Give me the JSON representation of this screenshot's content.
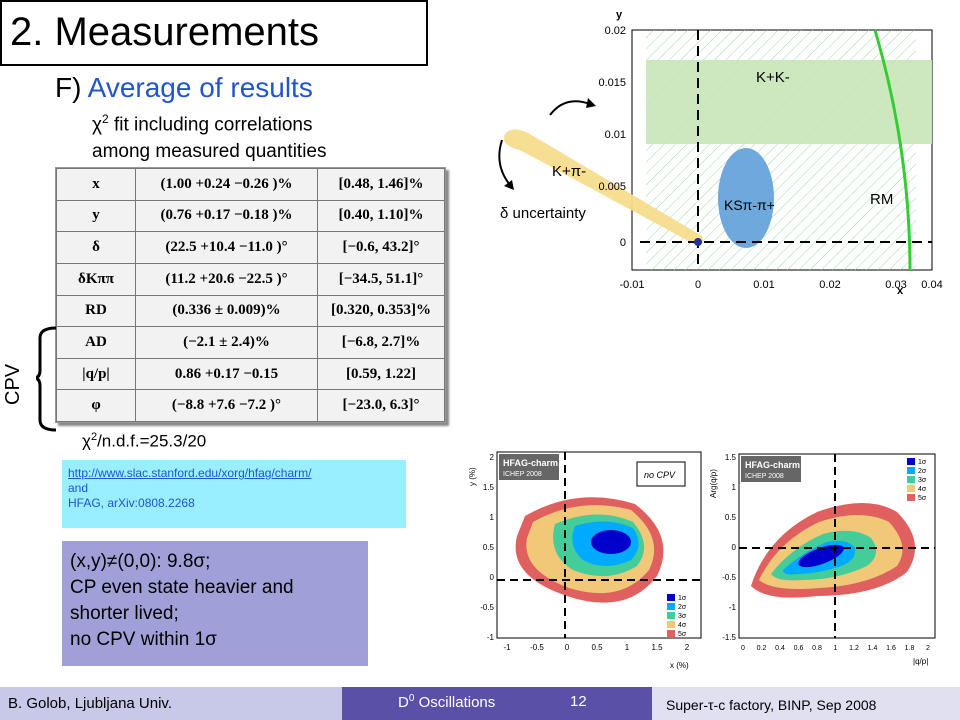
{
  "title": "2. Measurements",
  "section": {
    "letter": "F)",
    "name": "Average of results"
  },
  "fit_description": {
    "line1": "χ2 fit including correlations",
    "line1_symbol": "χ",
    "line1_sup": "2",
    "line1_rest": " fit including correlations",
    "line2": "among measured quantities"
  },
  "results_table": {
    "rows": [
      {
        "param": "x",
        "value": "(1.00 +0.24 −0.26 )%",
        "interval": "[0.48,   1.46]%"
      },
      {
        "param": "y",
        "value": "(0.76 +0.17 −0.18 )%",
        "interval": "[0.40,   1.10]%"
      },
      {
        "param": "δ",
        "value": "(22.5 +10.4 −11.0 )°",
        "interval": "[−0.6,   43.2]°"
      },
      {
        "param": "δKππ",
        "value": "(11.2 +20.6 −22.5 )°",
        "interval": "[−34.5,   51.1]°"
      },
      {
        "param": "RD",
        "value": "(0.336 ± 0.009)%",
        "interval": "[0.320,   0.353]%"
      },
      {
        "param": "AD",
        "value": "(−2.1 ± 2.4)%",
        "interval": "[−6.8,   2.7]%"
      },
      {
        "param": "|q/p|",
        "value": "0.86 +0.17 −0.15",
        "interval": "[0.59,   1.22]"
      },
      {
        "param": "φ",
        "value": "(−8.8 +7.6 −7.2 )°",
        "interval": "[−23.0,   6.3]°"
      }
    ]
  },
  "cpv_label": "CPV",
  "chi2_ndf": {
    "prefix": "χ",
    "sup": "2",
    "rest": "/n.d.f.=25.3/20"
  },
  "reference": {
    "url": "http://www.slac.stanford.edu/xorg/hfag/charm/",
    "and": "and",
    "citation": "HFAG, arXiv:0808.2268"
  },
  "conclusion": {
    "line1": "(x,y)≠(0,0): 9.8σ;",
    "line2": "CP even state heavier and",
    "line3": "shorter lived;",
    "line4": "no CPV within 1σ"
  },
  "top_plot": {
    "y_axis_title": "y",
    "x_axis_title": "x",
    "x_ticks": [
      "-0.01",
      "0",
      "0.01",
      "0.02",
      "0.03",
      "0.04"
    ],
    "y_ticks": [
      "0",
      "0.005",
      "0.01",
      "0.015",
      "0.02"
    ],
    "labels": {
      "kk": "K+K-",
      "kpi": "K+π-",
      "kspipi": "KSπ-π+",
      "rm": "RM",
      "delta": "δ uncertainty"
    },
    "colors": {
      "kk_band": "#c8e6b8",
      "kspipi": "#6fa8dc",
      "kpi": "#f6dc8c",
      "rm": "#33cc33"
    }
  },
  "bottom_left_plot": {
    "logo": "HFAG-charm",
    "conference": "ICHEP 2008",
    "note": "no CPV",
    "x_axis_title": "x (%)",
    "y_axis_title": "y (%)",
    "x_ticks": [
      "-1",
      "-0.5",
      "0",
      "0.5",
      "1",
      "1.5",
      "2"
    ],
    "y_ticks": [
      "2",
      "1.5",
      "1",
      "0.5",
      "0",
      "-0.5",
      "-1"
    ],
    "legend": [
      "1σ",
      "2σ",
      "3σ",
      "4σ",
      "5σ"
    ]
  },
  "bottom_right_plot": {
    "logo": "HFAG-charm",
    "conference": "ICHEP 2008",
    "x_axis_title": "|q/p|",
    "y_axis_title": "Arg(q/p)",
    "x_ticks": [
      "0",
      "0.2",
      "0.4",
      "0.6",
      "0.8",
      "1",
      "1.2",
      "1.4",
      "1.6",
      "1.8",
      "2"
    ],
    "y_ticks": [
      "1.5",
      "1",
      "0.5",
      "0",
      "-0.5",
      "-1",
      "-1.5"
    ],
    "legend": [
      "1σ",
      "2σ",
      "3σ",
      "4σ",
      "5σ"
    ]
  },
  "contour_colors": [
    "#0000cc",
    "#00aaff",
    "#44cc99",
    "#f0c878",
    "#e06060"
  ],
  "footer": {
    "author": "B. Golob, Ljubljana Univ.",
    "talk": "D0 Oscillations",
    "talk_main": "D",
    "talk_sup": "0",
    "talk_rest": " Oscillations",
    "page": "12",
    "conference": "Super-τ-c factory, BINP, Sep 2008"
  }
}
